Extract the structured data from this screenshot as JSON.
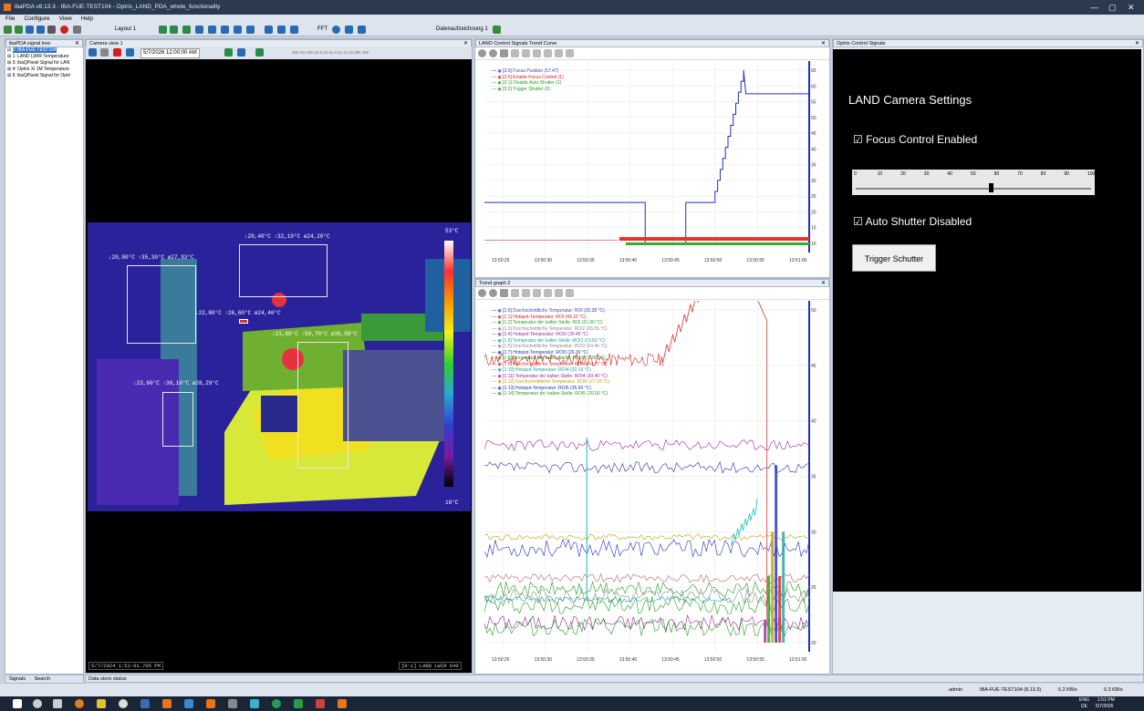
{
  "titlebar": {
    "title": "ibaPDA v8.13.3 - IBA-FUE-TEST104 - Optris_LAND_PDA_whole_functionality",
    "min": "—",
    "max": "▢",
    "close": "✕"
  },
  "menu": [
    "File",
    "Configure",
    "View",
    "Help"
  ],
  "toolbar": {
    "layout": "Layout 1",
    "fft": "FFT",
    "datarec": "Datenaufzeichnung 1"
  },
  "tree": {
    "title": "ibaPDA signal tree",
    "items": [
      "0: IBA-FUE-TEST104",
      "1: LAND LWIR Temperature",
      "3: ibaQPanel Signal for LAN",
      "4: Optris Xi 1M Temperature",
      "6: ibaQPanel Signal for Optri"
    ],
    "tabs": [
      "Signals",
      "Search"
    ]
  },
  "camera": {
    "title": "Camera view 1",
    "timestamp_field": "5/7/2026 12:00:00 AM",
    "scale_max": "53°C",
    "scale_min": "18°C",
    "foot_time": "5/7/2024 1:51:01.705 PM",
    "foot_source": "[0:1] LAND LWIR 640",
    "labels": [
      "↓20,80°C ↑35,30°C ø27,93°C",
      "↓20,40°C ↑32,10°C ø24,20°C",
      "↓22,80°C ↑26,60°C ø24,46°C",
      "↓23,60°C ↑50,70°C ø36,08°C",
      "↓23,60°C ↑38,10°C ø28,29°C"
    ],
    "zoom_ticks": [
      "40s",
      "1m",
      "10s",
      "1s",
      "0.1s",
      "1s",
      "0.1s",
      "1s",
      "1s",
      "20s",
      "10s"
    ]
  },
  "landtrend": {
    "title": "LAND Control Signals Trend Curve",
    "legend": [
      {
        "t": "[3:0] Focus Position (57.47)",
        "c": "#2030c0"
      },
      {
        "t": "[3:0] Enable Focus Control (1)",
        "c": "#d02020"
      },
      {
        "t": "[3:1] Disable Auto Shutter (1)",
        "c": "#20a020"
      },
      {
        "t": "[3:2] Trigger Shutter (0)",
        "c": "#20a020"
      }
    ],
    "xticks": [
      "13:50:25",
      "13:50:30",
      "13:50:35",
      "13:50:40",
      "13:50:45",
      "13:50:50",
      "13:50:55",
      "13:51:00"
    ],
    "yticks": [
      "65",
      "60",
      "55",
      "50",
      "45",
      "40",
      "35",
      "30",
      "25",
      "20",
      "15",
      "10"
    ]
  },
  "trend2": {
    "title": "Trend graph 2",
    "legend": [
      {
        "t": "[1:0] Durchschnittliche Temperatur: ROI (30.38 °C)",
        "c": "#2030c0"
      },
      {
        "t": "[1:1] Hotspot-Temperatur: ROI (49.10 °C)",
        "c": "#d02020"
      },
      {
        "t": "[1:2] Temperatur der kalten Stelle: ROI (23.60 °C)",
        "c": "#20a020"
      },
      {
        "t": "[1:3] Durchschnittliche Temperatur: ROI2 (26.55 °C)",
        "c": "#888888"
      },
      {
        "t": "[1:4] Hotspot-Temperatur: ROI2 (30.40 °C)",
        "c": "#a020a0"
      },
      {
        "t": "[1:5] Temperatur der kalten Stelle: ROI2 (23.60 °C)",
        "c": "#20a0a0"
      },
      {
        "t": "[1:6] Durchschnittliche Temperatur: ROI3 (24.46 °C)",
        "c": "#888888"
      },
      {
        "t": "[1:7] Hotspot-Temperatur: ROI3 (26.30 °C)",
        "c": "#2030c0"
      },
      {
        "t": "[1:8] Temperatur der kalten Stelle: ROI3 (22.80 °C)",
        "c": "#20a020"
      },
      {
        "t": "[1:9] Durchschnittliche Temperatur: ROI4 (24.22 °C)",
        "c": "#d02020"
      },
      {
        "t": "[1:10] Hotspot-Temperatur: ROI4 (32.10 °C)",
        "c": "#20a0a0"
      },
      {
        "t": "[1:11] Temperatur der kalten Stelle: ROI4 (20.40 °C)",
        "c": "#a020a0"
      },
      {
        "t": "[1:12] Durchschnittliche Temperatur: ROI5 (27.93 °C)",
        "c": "#c0a000"
      },
      {
        "t": "[1:13] Hotspot-Temperatur: ROI5 (35.60 °C)",
        "c": "#2030c0"
      },
      {
        "t": "[1:14] Temperatur der kalten Stelle: ROI5 (20.00 °C)",
        "c": "#20a020"
      }
    ],
    "xticks": [
      "13:50:25",
      "13:50:30",
      "13:50:35",
      "13:50:40",
      "13:50:45",
      "13:50:50",
      "13:50:55",
      "13:51:00"
    ],
    "yticks": [
      "50",
      "45",
      "40",
      "35",
      "30",
      "25",
      "20"
    ]
  },
  "optris": {
    "title": "Optris Control Signals",
    "heading": "LAND Camera Settings",
    "focus": "Focus Control Enabled",
    "shutter": "Auto Shutter Disabled",
    "trigger": "Trigger Schutter",
    "slider_value": 58,
    "slider_ticks": [
      "0",
      "10",
      "20",
      "30",
      "40",
      "50",
      "60",
      "70",
      "80",
      "90",
      "100"
    ]
  },
  "datastore": "Data store status",
  "status": {
    "user": "admin",
    "host": "IBA-FUE-TEST104 (8.13.3)",
    "rate1": "6.2 KB/s",
    "rate2": "0.3 KB/s"
  },
  "clock": {
    "lang": "ENG",
    "region": "DE",
    "time": "1:51 PM",
    "date": "5/7/2026"
  }
}
